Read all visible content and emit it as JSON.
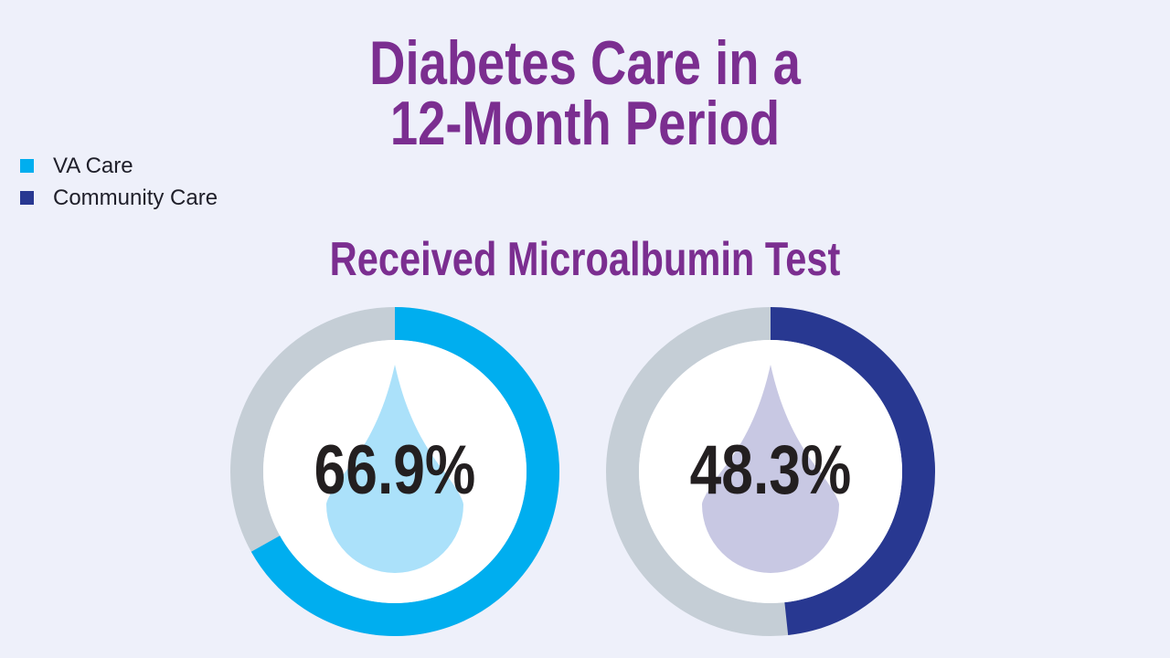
{
  "title_lines": [
    "Diabetes Care in a",
    "12-Month Period"
  ],
  "subtitle": "Received Microalbumin Test",
  "legend": [
    {
      "label": "VA Care",
      "color": "#00aeef"
    },
    {
      "label": "Community Care",
      "color": "#283891"
    }
  ],
  "colors": {
    "title": "#7b2e90",
    "ring_track": "#c5ced6",
    "background": "#eef0fa"
  },
  "chart_data": [
    {
      "type": "pie",
      "title": "Received Microalbumin Test",
      "series_name": "VA Care",
      "value": 66.9,
      "label": "66.9%",
      "unit": "%",
      "ring_color": "#00aeef",
      "drop_color": "#abe1fa",
      "drop_icon": "water-drop-icon"
    },
    {
      "type": "pie",
      "title": "Received Microalbumin Test",
      "series_name": "Community Care",
      "value": 48.3,
      "label": "48.3%",
      "unit": "%",
      "ring_color": "#283891",
      "drop_color": "#c8c8e3",
      "drop_icon": "water-drop-icon"
    }
  ]
}
